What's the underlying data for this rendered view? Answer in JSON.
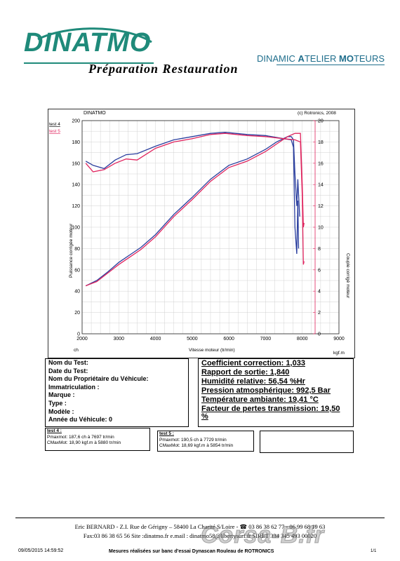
{
  "header": {
    "logo_text": "DINATMO",
    "tagline": "Préparation  Restauration",
    "brand_right_1": "DINAMIC ",
    "brand_right_2": "A",
    "brand_right_3": "TELIER ",
    "brand_right_4": "MO",
    "brand_right_5": "TEURS"
  },
  "chart": {
    "header_left": "DINATMO",
    "header_right": "(c) Rotronics, 2008",
    "legend_test4": "test 4",
    "legend_test5": "test 5",
    "colors": {
      "test4": "#2a3e9e",
      "test5": "#e0245e"
    }
  },
  "chart_data": {
    "type": "line",
    "xlabel": "Vitesse moteur (tr/min)",
    "x_unit_left": "ch",
    "x_unit_right": "kgf.m",
    "ylabel": "Puissance corrigée moteur",
    "ylabel_right": "Couple corrigé moteur",
    "xlim": [
      2000,
      9000
    ],
    "ylim": [
      0,
      200
    ],
    "ylim_right": [
      0,
      20
    ],
    "x_ticks": [
      2000,
      3000,
      4000,
      5000,
      6000,
      7000,
      8000,
      9000
    ],
    "y_ticks": [
      0,
      20,
      40,
      60,
      80,
      100,
      120,
      140,
      160,
      180,
      200
    ],
    "y_ticks_right": [
      0,
      2,
      4,
      6,
      8,
      10,
      12,
      14,
      16,
      18,
      20
    ],
    "grid": true,
    "series": [
      {
        "name": "test 4",
        "axis": "left",
        "x": [
          2100,
          2400,
          2700,
          3000,
          3300,
          3600,
          4000,
          4500,
          5000,
          5500,
          6000,
          6500,
          7000,
          7300,
          7600,
          7700,
          7760,
          7800,
          7850,
          7880,
          7900,
          7930
        ],
        "y": [
          45,
          50,
          58,
          67,
          74,
          81,
          93,
          112,
          128,
          145,
          158,
          164,
          173,
          180,
          185,
          185,
          182,
          150,
          120,
          145,
          130,
          110
        ]
      },
      {
        "name": "test 5",
        "axis": "left",
        "x": [
          2100,
          2400,
          2700,
          3000,
          3300,
          3600,
          4000,
          4500,
          5000,
          5500,
          6000,
          6500,
          7000,
          7300,
          7600,
          7800,
          7950,
          8000,
          8030,
          8050
        ],
        "y": [
          45,
          49,
          57,
          65,
          72,
          79,
          91,
          110,
          126,
          143,
          156,
          162,
          171,
          178,
          185,
          188,
          188,
          140,
          100,
          104
        ]
      },
      {
        "name": "test 4",
        "axis": "right",
        "x": [
          2100,
          2300,
          2600,
          2900,
          3200,
          3500,
          4000,
          4500,
          5000,
          5500,
          5900,
          6500,
          7000,
          7500,
          7700,
          7760,
          7800,
          7850,
          7880,
          7900
        ],
        "y": [
          16.2,
          15.8,
          15.5,
          16.3,
          16.8,
          16.9,
          17.6,
          18.2,
          18.5,
          18.8,
          18.9,
          18.7,
          18.6,
          18.3,
          18.2,
          17.5,
          10.0,
          7.5,
          12.5,
          8.0
        ]
      },
      {
        "name": "test 5",
        "axis": "right",
        "x": [
          2100,
          2300,
          2600,
          2900,
          3200,
          3500,
          4000,
          4500,
          5000,
          5500,
          5900,
          6500,
          7000,
          7500,
          7800,
          7950,
          8000,
          8030,
          8050
        ],
        "y": [
          16.0,
          15.2,
          15.4,
          16.0,
          16.4,
          16.3,
          17.4,
          18.0,
          18.3,
          18.7,
          18.8,
          18.6,
          18.5,
          18.3,
          18.2,
          18.0,
          13.0,
          6.5,
          6.8
        ]
      }
    ]
  },
  "vehicle_info": {
    "nom_test": "Nom du Test:",
    "date_test": "Date du Test:",
    "proprietaire": "Nom du Propriétaire du Véhicule:",
    "immatriculation": "Immatriculation  :",
    "marque": "Marque  :",
    "type": "Type  :",
    "modele": "Modèle  :",
    "annee": "Année du Véhicule: 0"
  },
  "conditions": {
    "coef": "Coefficient correction: 1,033",
    "rapport": "Rapport de sortie: 1,840",
    "humidite": "Humidité relative: 56,54 %Hr",
    "pression": "Pression atmosphérique: 992,5 Bar",
    "temperature": "Température ambiante: 19,41 °C",
    "pertes_1": "Facteur de pertes transmission: 19,50",
    "pertes_2": "%"
  },
  "results": {
    "t4_title": "test 4 :",
    "t4_pmax": "Pmaxmot: 187,6 ch à 7697 tr/min",
    "t4_cmax": "CMaxMot: 18,90 kgf.m à 5880 tr/min",
    "t5_title": "test 5 :",
    "t5_pmax": "Pmaxmot: 190,5 ch à 7729 tr/min",
    "t5_cmax": "CMaxMot: 18,69 kgf.m à 5854 tr/min"
  },
  "footer": {
    "line1": "Eric BERNARD - Z.I. Rue de Gérigny – 58400 La Charité S/Loire - ☎ 03 86 38 62 77 - 06 99 68 19 63",
    "line2": "Fax:03 86 38 65 56  Site :dinatmo.fr    e.mail : dinatmo58@libertysurf.fr      SIRET 334 345 493 00020",
    "date": "09/05/2015 14:59:52",
    "mesures": "Mesures réalisées sur banc d'essai Dynascan Rouleau de ROTRONICS",
    "page": "1/1",
    "watermark": "Corsa-B.fr"
  }
}
